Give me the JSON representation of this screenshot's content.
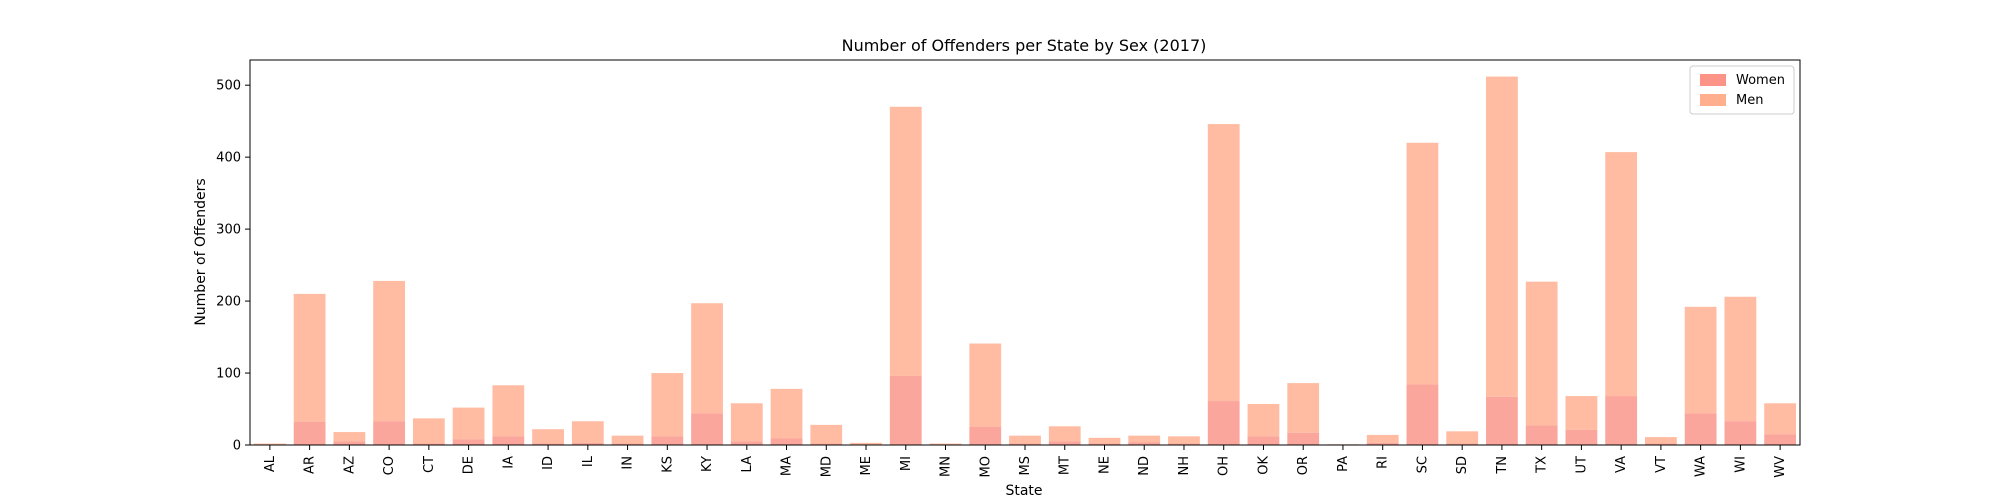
{
  "chart_data": {
    "type": "bar",
    "stacked": true,
    "title": "Number of Offenders per State by Sex (2017)",
    "xlabel": "State",
    "ylabel": "Number of Offenders",
    "ylim": [
      0,
      535
    ],
    "yticks": [
      0,
      100,
      200,
      300,
      400,
      500
    ],
    "grid": false,
    "legend_position": "top-right",
    "categories": [
      "AL",
      "AR",
      "AZ",
      "CO",
      "CT",
      "DE",
      "IA",
      "ID",
      "IL",
      "IN",
      "KS",
      "KY",
      "LA",
      "MA",
      "MD",
      "ME",
      "MI",
      "MN",
      "MO",
      "MS",
      "MT",
      "NE",
      "ND",
      "NH",
      "OH",
      "OK",
      "OR",
      "PA",
      "RI",
      "SC",
      "SD",
      "TN",
      "TX",
      "UT",
      "VA",
      "VT",
      "WA",
      "WI",
      "WV"
    ],
    "series": [
      {
        "name": "Women",
        "color": "#fa8072",
        "values": [
          0,
          32,
          5,
          33,
          2,
          8,
          12,
          2,
          3,
          2,
          12,
          44,
          5,
          9,
          2,
          0,
          96,
          0,
          25,
          2,
          5,
          2,
          4,
          2,
          61,
          12,
          17,
          0,
          3,
          84,
          2,
          67,
          27,
          21,
          68,
          2,
          44,
          33,
          15
        ]
      },
      {
        "name": "Men",
        "color": "#ffa07a",
        "values": [
          2,
          178,
          13,
          195,
          35,
          44,
          71,
          20,
          30,
          11,
          88,
          153,
          53,
          69,
          26,
          3,
          374,
          2,
          116,
          11,
          21,
          8,
          9,
          10,
          385,
          45,
          69,
          1,
          11,
          336,
          17,
          445,
          200,
          47,
          339,
          9,
          148,
          173,
          43
        ]
      }
    ]
  }
}
